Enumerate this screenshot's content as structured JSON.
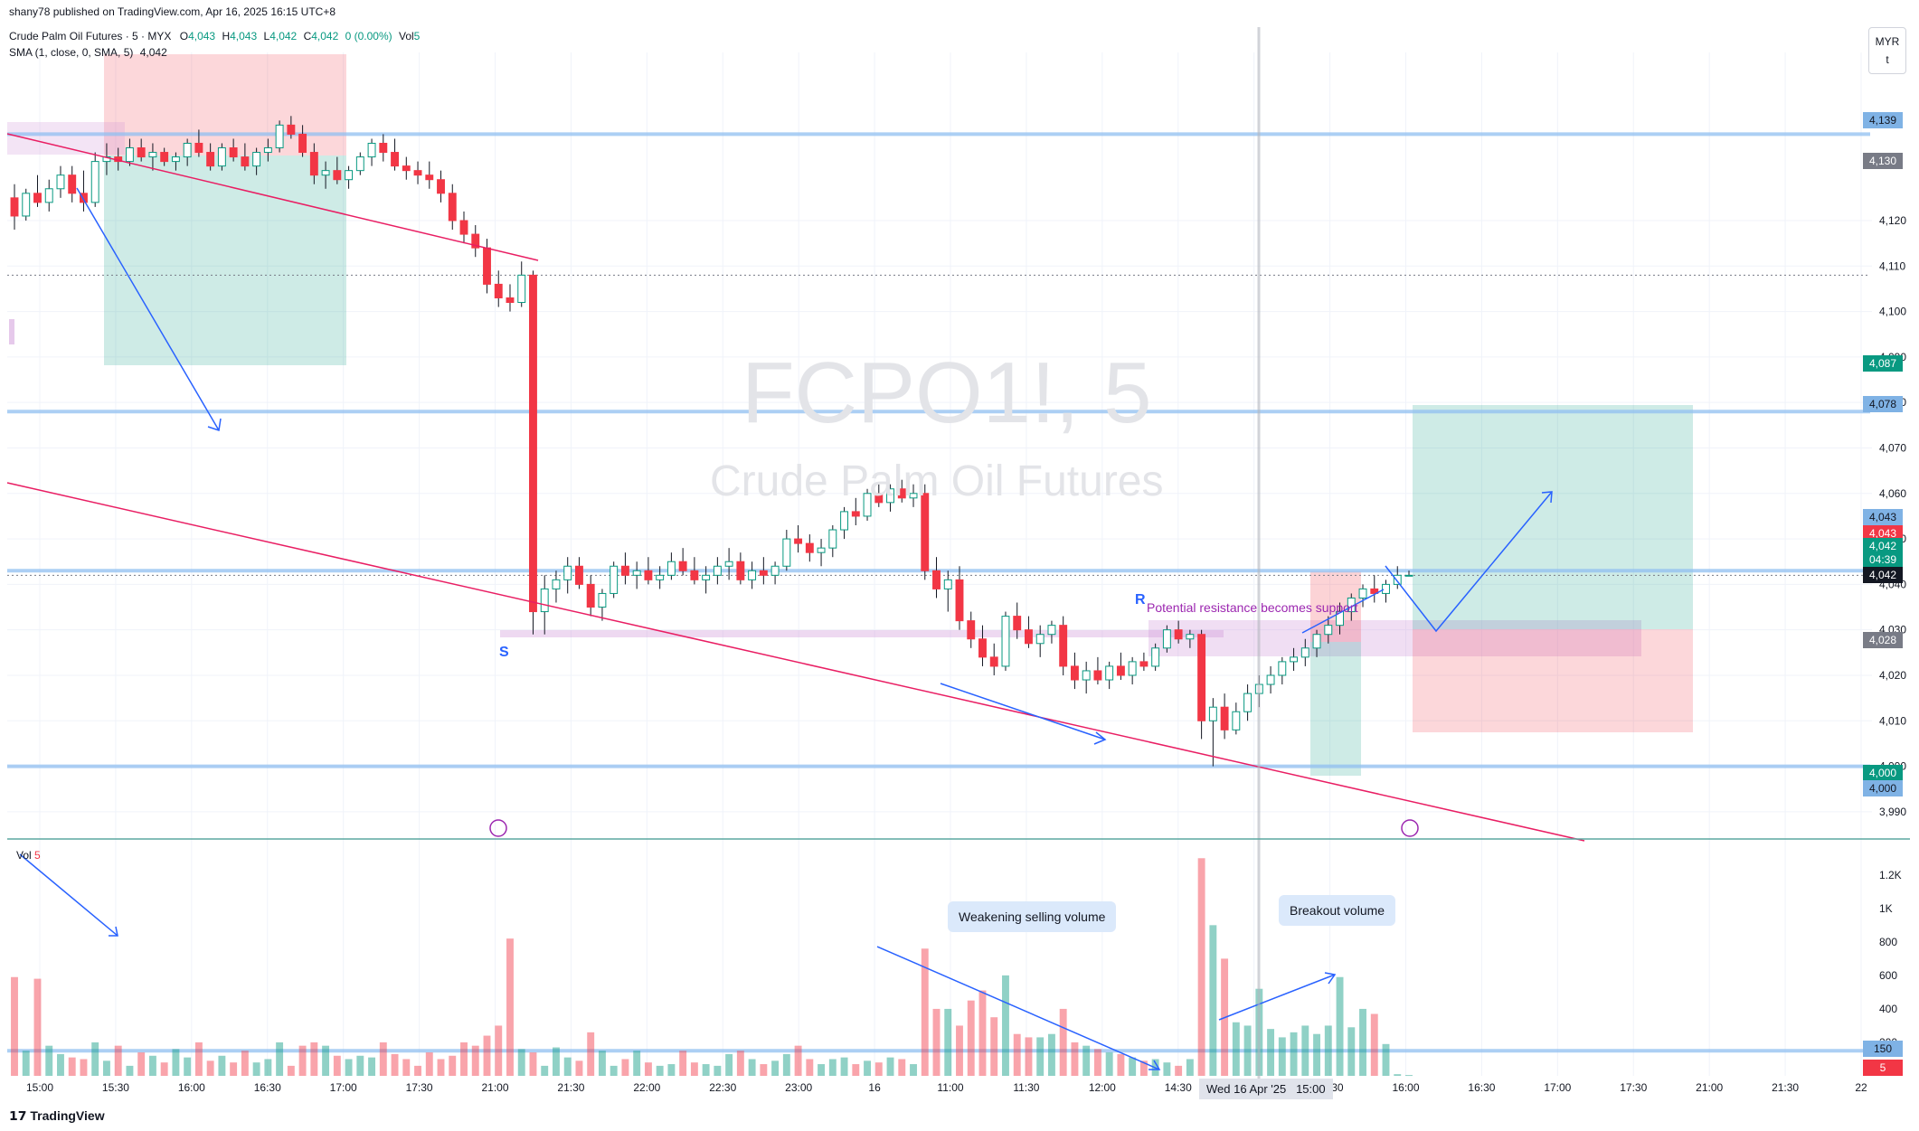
{
  "header": {
    "publisher": "shany78 published on TradingView.com, Apr 16, 2025 16:15 UTC+8",
    "symbol_line": "Crude Palm Oil Futures · 5 · MYX",
    "ohlc": {
      "o_label": "O",
      "o": "4,043",
      "h_label": "H",
      "h": "4,043",
      "l_label": "L",
      "l": "4,042",
      "c_label": "C",
      "c": "4,042",
      "change": "0 (0.00%)",
      "vol_label": "Vol",
      "vol": "5"
    },
    "sma_line": "SMA (1, close, 0, SMA, 5)",
    "sma_value": "4,042"
  },
  "watermark": {
    "symbol": "FCPO1!, 5",
    "name": "Crude Palm Oil Futures"
  },
  "currency": {
    "code": "MYR",
    "sub": "t"
  },
  "footer_logo": "TradingView",
  "annotations": {
    "support_marker": "S",
    "resistance_marker": "R",
    "resistance_text": "Potential resistance becomes support",
    "weakening_callout": "Weakening selling volume",
    "breakout_callout": "Breakout volume"
  },
  "price_tags": [
    {
      "text": "4,139",
      "color": "#7fb2e5",
      "text_color": "#131722"
    },
    {
      "text": "4,130",
      "color": "#787b86",
      "text_color": "#ffffff"
    },
    {
      "text": "4,087",
      "color": "#089981",
      "text_color": "#ffffff"
    },
    {
      "text": "4,078",
      "color": "#7fb2e5",
      "text_color": "#131722"
    },
    {
      "text": "4,043",
      "color": "#7fb2e5",
      "text_color": "#131722"
    },
    {
      "text": "4,043",
      "color": "#f23645",
      "text_color": "#ffffff"
    },
    {
      "text": "4,042",
      "color": "#089981",
      "text_color": "#ffffff"
    },
    {
      "text": "04:39",
      "color": "#089981",
      "text_color": "#ffffff"
    },
    {
      "text": "4,042",
      "color": "#131722",
      "text_color": "#ffffff"
    },
    {
      "text": "4,028",
      "color": "#787b86",
      "text_color": "#ffffff"
    },
    {
      "text": "4,000",
      "color": "#089981",
      "text_color": "#ffffff"
    },
    {
      "text": "4,000",
      "color": "#7fb2e5",
      "text_color": "#131722"
    },
    {
      "text": "150",
      "color": "#7fb2e5",
      "text_color": "#131722"
    },
    {
      "text": "5",
      "color": "#f23645",
      "text_color": "#ffffff"
    }
  ],
  "chart_data": {
    "type": "candlestick",
    "price_axis": {
      "ticks": [
        "4,120",
        "4,110",
        "4,100",
        "4,090",
        "4,080",
        "4,070",
        "4,060",
        "4,050",
        "4,040",
        "4,030",
        "4,020",
        "4,010",
        "4,000",
        "3,990"
      ],
      "range": [
        3986,
        4153
      ]
    },
    "volume_axis": {
      "ticks": [
        "1.2K",
        "1K",
        "800",
        "600",
        "400",
        "200"
      ],
      "range": [
        0,
        1350
      ]
    },
    "time_axis": {
      "ticks": [
        "15:00",
        "15:30",
        "16:00",
        "16:30",
        "17:00",
        "17:30",
        "21:00",
        "21:30",
        "22:00",
        "22:30",
        "23:00",
        "16",
        "11:00",
        "11:30",
        "12:00",
        "14:30",
        "15:00",
        "15:30",
        "16:00",
        "16:30",
        "17:00",
        "17:30",
        "21:00",
        "21:30",
        "22"
      ],
      "crosshair_label": "Wed 16 Apr '25   15:00"
    },
    "horizontal_levels": [
      4139,
      4078,
      4043,
      4000
    ],
    "volume_level": 150,
    "candles_ohlcv": [
      [
        4125,
        4128,
        4118,
        4121,
        590
      ],
      [
        4121,
        4127,
        4120,
        4126,
        150
      ],
      [
        4126,
        4130,
        4123,
        4124,
        580
      ],
      [
        4124,
        4129,
        4122,
        4127,
        180
      ],
      [
        4127,
        4132,
        4125,
        4130,
        130
      ],
      [
        4130,
        4132,
        4124,
        4126,
        110
      ],
      [
        4126,
        4131,
        4122,
        4124,
        100
      ],
      [
        4124,
        4135,
        4123,
        4133,
        200
      ],
      [
        4133,
        4137,
        4130,
        4134,
        90
      ],
      [
        4134,
        4136,
        4131,
        4133,
        180
      ],
      [
        4133,
        4138,
        4132,
        4136,
        60
      ],
      [
        4136,
        4138,
        4133,
        4134,
        140
      ],
      [
        4134,
        4137,
        4131,
        4135,
        120
      ],
      [
        4135,
        4136,
        4132,
        4133,
        80
      ],
      [
        4133,
        4135,
        4131,
        4134,
        160
      ],
      [
        4134,
        4138,
        4132,
        4137,
        110
      ],
      [
        4137,
        4140,
        4134,
        4135,
        200
      ],
      [
        4135,
        4137,
        4131,
        4132,
        90
      ],
      [
        4132,
        4137,
        4131,
        4136,
        120
      ],
      [
        4136,
        4138,
        4133,
        4134,
        80
      ],
      [
        4134,
        4137,
        4131,
        4132,
        150
      ],
      [
        4132,
        4136,
        4130,
        4135,
        80
      ],
      [
        4135,
        4138,
        4133,
        4136,
        100
      ],
      [
        4136,
        4142,
        4135,
        4141,
        200
      ],
      [
        4141,
        4143,
        4138,
        4139,
        60
      ],
      [
        4139,
        4141,
        4134,
        4135,
        180
      ],
      [
        4135,
        4137,
        4128,
        4130,
        200
      ],
      [
        4130,
        4133,
        4127,
        4131,
        180
      ],
      [
        4131,
        4134,
        4128,
        4129,
        120
      ],
      [
        4129,
        4132,
        4127,
        4131,
        100
      ],
      [
        4131,
        4135,
        4130,
        4134,
        120
      ],
      [
        4134,
        4138,
        4132,
        4137,
        110
      ],
      [
        4137,
        4139,
        4133,
        4135,
        200
      ],
      [
        4135,
        4138,
        4131,
        4132,
        130
      ],
      [
        4132,
        4134,
        4129,
        4131,
        100
      ],
      [
        4131,
        4133,
        4128,
        4130,
        60
      ],
      [
        4130,
        4133,
        4127,
        4129,
        140
      ],
      [
        4129,
        4131,
        4124,
        4126,
        100
      ],
      [
        4126,
        4128,
        4118,
        4120,
        120
      ],
      [
        4120,
        4122,
        4115,
        4117,
        200
      ],
      [
        4117,
        4119,
        4112,
        4114,
        180
      ],
      [
        4114,
        4116,
        4104,
        4106,
        240
      ],
      [
        4106,
        4109,
        4101,
        4103,
        300
      ],
      [
        4103,
        4106,
        4100,
        4102,
        820
      ],
      [
        4102,
        4111,
        4101,
        4108,
        160
      ],
      [
        4108,
        4109,
        4029,
        4034,
        140
      ],
      [
        4034,
        4042,
        4029,
        4039,
        60
      ],
      [
        4039,
        4043,
        4036,
        4041,
        170
      ],
      [
        4041,
        4046,
        4038,
        4044,
        110
      ],
      [
        4044,
        4046,
        4039,
        4040,
        90
      ],
      [
        4040,
        4042,
        4033,
        4035,
        260
      ],
      [
        4035,
        4039,
        4032,
        4038,
        150
      ],
      [
        4038,
        4045,
        4037,
        4044,
        60
      ],
      [
        4044,
        4047,
        4040,
        4042,
        100
      ],
      [
        4042,
        4045,
        4039,
        4043,
        150
      ],
      [
        4043,
        4046,
        4040,
        4041,
        80
      ],
      [
        4041,
        4044,
        4039,
        4042,
        60
      ],
      [
        4042,
        4047,
        4041,
        4045,
        70
      ],
      [
        4045,
        4048,
        4042,
        4043,
        150
      ],
      [
        4043,
        4046,
        4040,
        4041,
        80
      ],
      [
        4041,
        4044,
        4038,
        4042,
        70
      ],
      [
        4042,
        4046,
        4040,
        4044,
        60
      ],
      [
        4044,
        4048,
        4041,
        4045,
        130
      ],
      [
        4045,
        4047,
        4040,
        4041,
        150
      ],
      [
        4041,
        4045,
        4039,
        4043,
        100
      ],
      [
        4043,
        4046,
        4040,
        4042,
        70
      ],
      [
        4042,
        4045,
        4040,
        4044,
        90
      ],
      [
        4044,
        4052,
        4043,
        4050,
        130
      ],
      [
        4050,
        4053,
        4047,
        4049,
        180
      ],
      [
        4049,
        4051,
        4045,
        4047,
        100
      ],
      [
        4047,
        4050,
        4044,
        4048,
        70
      ],
      [
        4048,
        4053,
        4046,
        4052,
        100
      ],
      [
        4052,
        4057,
        4050,
        4056,
        110
      ],
      [
        4056,
        4059,
        4053,
        4055,
        70
      ],
      [
        4055,
        4061,
        4054,
        4060,
        90
      ],
      [
        4060,
        4062,
        4057,
        4058,
        80
      ],
      [
        4058,
        4062,
        4056,
        4061,
        110
      ],
      [
        4061,
        4063,
        4058,
        4059,
        100
      ],
      [
        4059,
        4062,
        4057,
        4060,
        70
      ],
      [
        4060,
        4062,
        4041,
        4043,
        760
      ],
      [
        4043,
        4046,
        4037,
        4039,
        400
      ],
      [
        4039,
        4043,
        4034,
        4041,
        400
      ],
      [
        4041,
        4044,
        4030,
        4032,
        300
      ],
      [
        4032,
        4034,
        4026,
        4028,
        450
      ],
      [
        4028,
        4031,
        4022,
        4024,
        510
      ],
      [
        4024,
        4027,
        4020,
        4022,
        350
      ],
      [
        4022,
        4034,
        4021,
        4033,
        600
      ],
      [
        4033,
        4036,
        4028,
        4030,
        250
      ],
      [
        4030,
        4033,
        4026,
        4027,
        230
      ],
      [
        4027,
        4031,
        4024,
        4029,
        230
      ],
      [
        4029,
        4032,
        4027,
        4031,
        250
      ],
      [
        4031,
        4033,
        4020,
        4022,
        400
      ],
      [
        4022,
        4025,
        4017,
        4019,
        200
      ],
      [
        4019,
        4023,
        4016,
        4021,
        180
      ],
      [
        4021,
        4024,
        4018,
        4019,
        160
      ],
      [
        4019,
        4023,
        4017,
        4022,
        140
      ],
      [
        4022,
        4025,
        4019,
        4020,
        130
      ],
      [
        4020,
        4024,
        4018,
        4023,
        110
      ],
      [
        4023,
        4025,
        4021,
        4022,
        90
      ],
      [
        4022,
        4027,
        4021,
        4026,
        100
      ],
      [
        4026,
        4031,
        4025,
        4030,
        80
      ],
      [
        4030,
        4032,
        4027,
        4028,
        60
      ],
      [
        4028,
        4030,
        4026,
        4029,
        100
      ],
      [
        4029,
        4030,
        4006,
        4010,
        1300
      ],
      [
        4010,
        4015,
        4000,
        4013,
        900
      ],
      [
        4013,
        4016,
        4006,
        4008,
        700
      ],
      [
        4008,
        4014,
        4007,
        4012,
        320
      ],
      [
        4012,
        4018,
        4010,
        4016,
        300
      ],
      [
        4016,
        4020,
        4013,
        4018,
        520
      ],
      [
        4018,
        4022,
        4016,
        4020,
        280
      ],
      [
        4020,
        4024,
        4018,
        4023,
        230
      ],
      [
        4023,
        4026,
        4021,
        4024,
        260
      ],
      [
        4024,
        4028,
        4022,
        4026,
        300
      ],
      [
        4026,
        4030,
        4024,
        4029,
        250
      ],
      [
        4029,
        4033,
        4027,
        4031,
        300
      ],
      [
        4031,
        4036,
        4029,
        4034,
        590
      ],
      [
        4034,
        4038,
        4032,
        4037,
        290
      ],
      [
        4037,
        4040,
        4035,
        4039,
        400
      ],
      [
        4039,
        4042,
        4036,
        4038,
        370
      ],
      [
        4038,
        4041,
        4036,
        4040,
        190
      ],
      [
        4040,
        4044,
        4039,
        4042,
        10
      ],
      [
        4042,
        4043,
        4042,
        4042,
        5
      ]
    ]
  }
}
